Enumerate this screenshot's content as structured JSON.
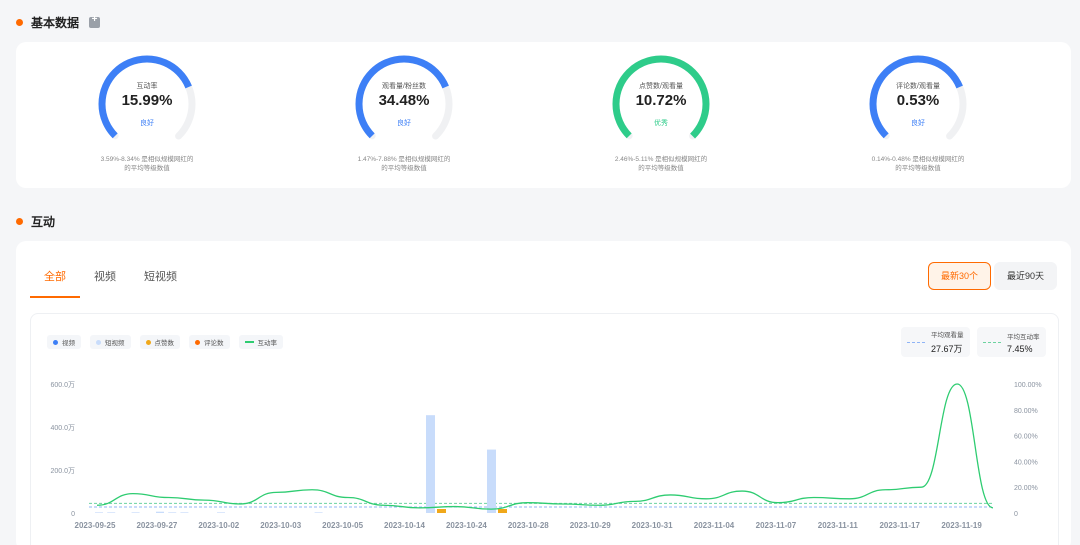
{
  "basic": {
    "title": "基本数据",
    "gauges": [
      {
        "label": "互动率",
        "value": "15.99%",
        "rating": "良好",
        "percent": 0.75,
        "color": "#3d7ff6",
        "desc1": "3.59%-8.34% 是相似规模网红的",
        "desc2": "的平均等级数值"
      },
      {
        "label": "观看量/粉丝数",
        "value": "34.48%",
        "rating": "良好",
        "percent": 0.75,
        "color": "#3d7ff6",
        "desc1": "1.47%-7.88% 是相似规模网红的",
        "desc2": "的平均等级数值"
      },
      {
        "label": "点赞数/观看量",
        "value": "10.72%",
        "rating": "优秀",
        "percent": 1.0,
        "color": "#2ecc8a",
        "desc1": "2.46%-5.11% 是相似规模网红的",
        "desc2": "的平均等级数值"
      },
      {
        "label": "评论数/观看量",
        "value": "0.53%",
        "rating": "良好",
        "percent": 0.75,
        "color": "#3d7ff6",
        "desc1": "0.14%-0.48% 是相似规模网红的",
        "desc2": "的平均等级数值"
      }
    ]
  },
  "interaction": {
    "title": "互动",
    "tabs": [
      "全部",
      "视频",
      "短视频"
    ],
    "active_tab": 0,
    "range": [
      "最新30个",
      "最近90天"
    ],
    "legend": [
      {
        "label": "视频",
        "color": "#3d7ff6",
        "shape": "dot"
      },
      {
        "label": "短视频",
        "color": "#c8dcfb",
        "shape": "dot"
      },
      {
        "label": "点赞数",
        "color": "#f0a81a",
        "shape": "dot"
      },
      {
        "label": "评论数",
        "color": "#ff6a00",
        "shape": "dot"
      },
      {
        "label": "互动率",
        "color": "#2ecc71",
        "shape": "line"
      }
    ],
    "avg_views": {
      "label": "平均观看量",
      "value": "27.67万",
      "color": "#8fb4f6"
    },
    "avg_rate": {
      "label": "平均互动率",
      "value": "7.45%",
      "color": "#6cd3a0"
    }
  },
  "chart_data": {
    "type": "bar",
    "left_axis": {
      "ticks": [
        "0",
        "200.0万",
        "400.0万",
        "600.0万"
      ],
      "max": 600
    },
    "right_axis": {
      "ticks": [
        "0",
        "20.00%",
        "40.00%",
        "60.00%",
        "80.00%",
        "100.00%"
      ],
      "max": 100
    },
    "x_labels": [
      "2023-09-25",
      "2023-09-27",
      "2023-10-02",
      "2023-10-03",
      "2023-10-05",
      "2023-10-14",
      "2023-10-24",
      "2023-10-28",
      "2023-10-29",
      "2023-10-31",
      "2023-11-04",
      "2023-11-07",
      "2023-11-11",
      "2023-11-17",
      "2023-11-19"
    ],
    "short_video_views": [
      1,
      1,
      0,
      1,
      0,
      2,
      1,
      1,
      0,
      0,
      1,
      0,
      0,
      0,
      0,
      0,
      0,
      0,
      1,
      0,
      0,
      0,
      0,
      0,
      0,
      0,
      0,
      0,
      0,
      0,
      0,
      0,
      0,
      0,
      0,
      0,
      0,
      0,
      0,
      0,
      0,
      0,
      0,
      0,
      0,
      0,
      0,
      0,
      0,
      0,
      0,
      0,
      0,
      0,
      0,
      0,
      0,
      0,
      0,
      0,
      0,
      0,
      0,
      0,
      0,
      0,
      0,
      0,
      0,
      0,
      0,
      0,
      0,
      0,
      0
    ],
    "highlight_bars": [
      {
        "date": "2023-10-14",
        "views": 455,
        "likes": 25
      },
      {
        "date": "2023-10-24",
        "views": 295,
        "likes": 15
      }
    ],
    "engagement_rate": [
      6,
      15,
      12,
      10,
      7,
      16,
      18,
      12,
      6,
      4,
      5,
      3,
      8,
      7,
      6,
      9,
      14,
      11,
      17,
      8,
      12,
      11,
      18,
      20,
      100,
      4
    ],
    "avg_views_line": 27.67,
    "avg_rate_line": 7.45
  }
}
